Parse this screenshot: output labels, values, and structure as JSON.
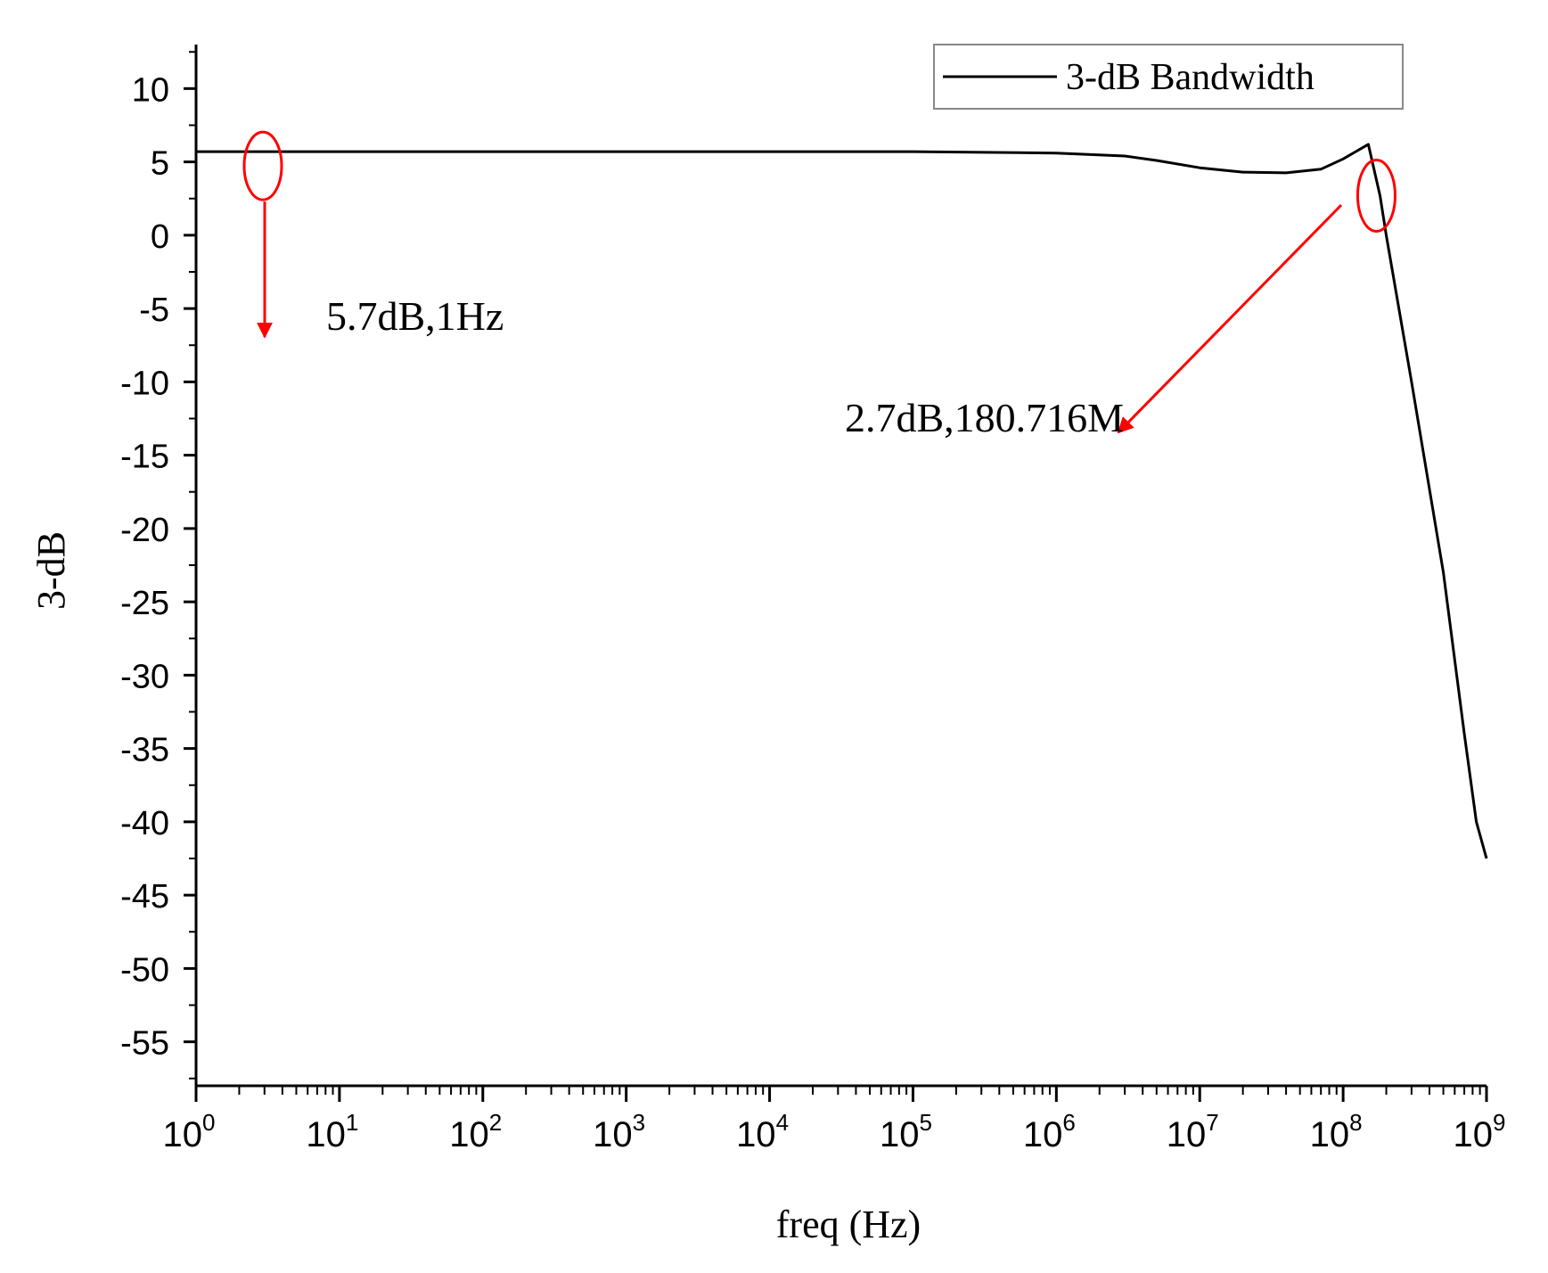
{
  "chart_data": {
    "type": "line",
    "title": "",
    "xlabel": "freq (Hz)",
    "ylabel": "3-dB",
    "xscale": "log",
    "xlim": [
      1,
      1000000000
    ],
    "ylim": [
      -58,
      13
    ],
    "grid": false,
    "legend": {
      "placement": "top-right",
      "entries": [
        "3-dB Bandwidth"
      ]
    },
    "x_ticks": [
      {
        "base": "10",
        "exp": "0",
        "value": 1
      },
      {
        "base": "10",
        "exp": "1",
        "value": 10
      },
      {
        "base": "10",
        "exp": "2",
        "value": 100
      },
      {
        "base": "10",
        "exp": "3",
        "value": 1000
      },
      {
        "base": "10",
        "exp": "4",
        "value": 10000
      },
      {
        "base": "10",
        "exp": "5",
        "value": 100000
      },
      {
        "base": "10",
        "exp": "6",
        "value": 1000000
      },
      {
        "base": "10",
        "exp": "7",
        "value": 10000000
      },
      {
        "base": "10",
        "exp": "8",
        "value": 100000000
      },
      {
        "base": "10",
        "exp": "9",
        "value": 1000000000
      }
    ],
    "y_ticks": [
      10,
      5,
      0,
      -5,
      -10,
      -15,
      -20,
      -25,
      -30,
      -35,
      -40,
      -45,
      -50,
      -55
    ],
    "y_tick_labels": [
      "10",
      "5",
      "0",
      "-5",
      "-10",
      "-15",
      "-20",
      "-25",
      "-30",
      "-35",
      "-40",
      "-45",
      "-50",
      "-55"
    ],
    "series": [
      {
        "name": "3-dB Bandwidth",
        "color": "#000000",
        "points": [
          [
            1,
            5.7
          ],
          [
            10,
            5.7
          ],
          [
            100,
            5.7
          ],
          [
            1000,
            5.7
          ],
          [
            10000,
            5.7
          ],
          [
            100000,
            5.7
          ],
          [
            1000000,
            5.6
          ],
          [
            3000000,
            5.4
          ],
          [
            5000000,
            5.1
          ],
          [
            10000000,
            4.6
          ],
          [
            20000000,
            4.3
          ],
          [
            40000000,
            4.25
          ],
          [
            70000000,
            4.5
          ],
          [
            100000000,
            5.2
          ],
          [
            150000000,
            6.2
          ],
          [
            180716000,
            2.7
          ],
          [
            200000000,
            0
          ],
          [
            300000000,
            -10
          ],
          [
            500000000,
            -23
          ],
          [
            700000000,
            -34
          ],
          [
            850000000,
            -40
          ],
          [
            1000000000,
            -42.5
          ]
        ]
      }
    ],
    "annotations": [
      {
        "text": "5.7dB,1Hz",
        "point": [
          1,
          5.7
        ],
        "color": "#ff0000"
      },
      {
        "text": "2.7dB,180.716M",
        "point": [
          180716000,
          2.7
        ],
        "color": "#ff0000"
      }
    ]
  }
}
